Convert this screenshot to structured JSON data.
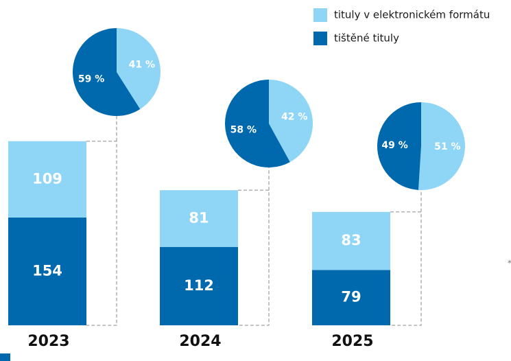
{
  "chart_data": {
    "type": "stacked-bar-pie",
    "categories": [
      "2023",
      "2024",
      "2025"
    ],
    "series": [
      {
        "name": "tituly v elektronickém formátu",
        "color": "#8fd5f6",
        "values": [
          109,
          81,
          83
        ]
      },
      {
        "name": "tištěné tituly",
        "color": "#0068ad",
        "values": [
          154,
          112,
          79
        ]
      }
    ],
    "pies": [
      {
        "values": [
          41,
          59
        ],
        "value_labels": [
          "41 %",
          "59 %"
        ]
      },
      {
        "values": [
          42,
          58
        ],
        "value_labels": [
          "42 %",
          "58 %"
        ]
      },
      {
        "values": [
          51,
          49
        ],
        "value_labels": [
          "51 %",
          "49 %"
        ]
      }
    ],
    "annotation": "*"
  }
}
